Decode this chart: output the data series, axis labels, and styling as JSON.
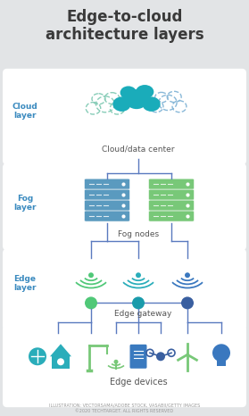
{
  "title": "Edge-to-cloud\narchitecture layers",
  "bg_color": "#e2e4e6",
  "panel_color": "#ffffff",
  "teal_dark": "#1a9bab",
  "teal_solid": "#2aadba",
  "green_light": "#78c878",
  "blue_server": "#5a9abf",
  "green_server": "#78c878",
  "blue_line": "#5a7abf",
  "text_dark": "#555555",
  "label_color": "#3a8abf",
  "wifi_green": "#50c878",
  "wifi_teal": "#2aadba",
  "wifi_blue": "#3a78bf",
  "dot_green": "#50c878",
  "dot_teal": "#1a9bab",
  "dot_blue": "#3a5fa0",
  "cloud_left_color": "#90d5c0",
  "cloud_center_color": "#1aacba",
  "cloud_right_color": "#90c8e0",
  "footer": "ILLUSTRATION: VECTORSAMA/ADOBE STOCK, VASABII/GETTY IMAGES\n©2020 TECHTARGET. ALL RIGHTS RESERVED",
  "layer_labels": [
    "Cloud\nlayer",
    "Fog\nlayer",
    "Edge\nlayer"
  ],
  "node_labels": [
    "Cloud/data center",
    "Fog nodes",
    "Edge gateway",
    "Edge devices"
  ]
}
